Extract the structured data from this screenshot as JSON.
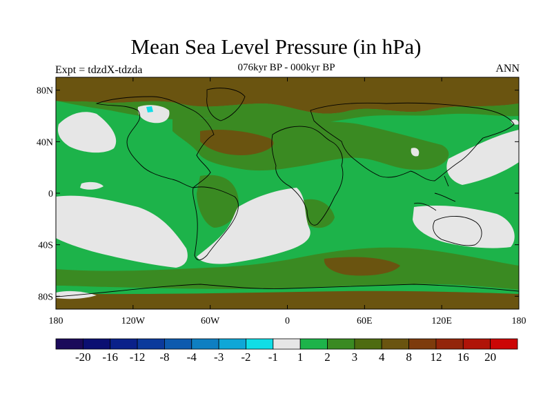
{
  "title": "Mean Sea Level Pressure (in hPa)",
  "subtitle": "076kyr BP - 000kyr BP",
  "experiment_label": "Expt = tdzdX-tdzda",
  "season_label": "ANN",
  "x_ticks": [
    "180",
    "120W",
    "60W",
    "0",
    "60E",
    "120E",
    "180"
  ],
  "y_ticks": [
    "80N",
    "40N",
    "0",
    "40S",
    "80S"
  ],
  "colorbar": {
    "colors": [
      "#1b0a5a",
      "#0b0f72",
      "#0a218a",
      "#0b3a9c",
      "#0d5aae",
      "#0e7fc2",
      "#0fa7d7",
      "#10dde6",
      "#e6e6e6",
      "#1db34a",
      "#3a8a22",
      "#4d6b10",
      "#6a5410",
      "#7d3b0c",
      "#93250a",
      "#b01408",
      "#cc0606"
    ],
    "labels": [
      "-20",
      "-16",
      "-12",
      "-8",
      "-4",
      "-3",
      "-2",
      "-1",
      "1",
      "2",
      "3",
      "4",
      "8",
      "12",
      "16",
      "20"
    ]
  },
  "map_colors": {
    "green": "#1db34a",
    "olive": "#3a8a22",
    "dark_olive": "#4d6b10",
    "brown": "#6a5410",
    "light_gray": "#e6e6e6",
    "cyan": "#10dde6"
  }
}
